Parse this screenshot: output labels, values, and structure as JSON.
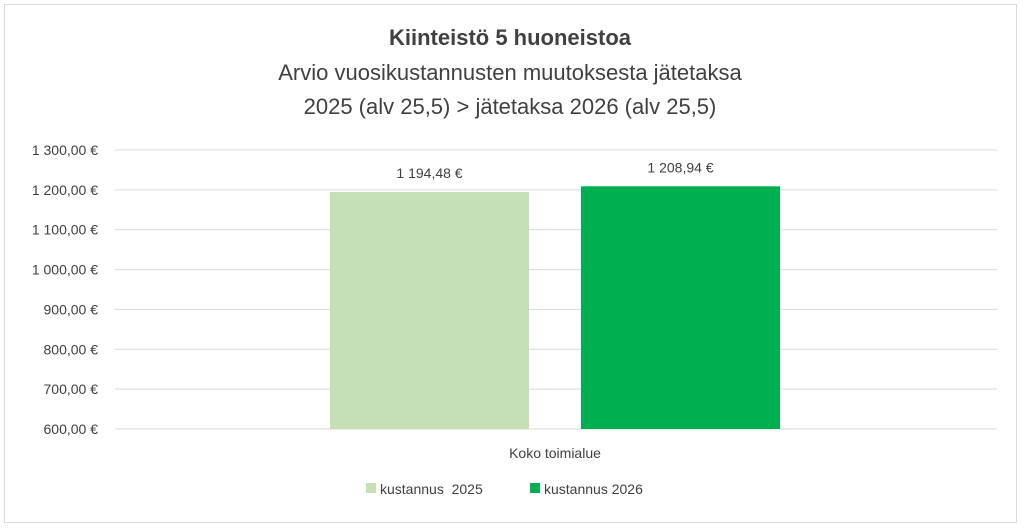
{
  "chart_data": {
    "type": "bar",
    "title": "Kiinteistö 5 huoneistoa",
    "subtitle_lines": [
      "Arvio vuosikustannusten muutoksesta jätetaksa",
      "2025 (alv 25,5) > jätetaksa 2026 (alv 25,5)"
    ],
    "categories": [
      "Koko toimialue"
    ],
    "series": [
      {
        "name": "kustannus  2025",
        "values": [
          1194.48
        ],
        "label": "1 194,48 €",
        "color": "#c5e0b4"
      },
      {
        "name": "kustannus 2026",
        "values": [
          1208.94
        ],
        "label": "1 208,94 €",
        "color": "#00b050"
      }
    ],
    "ylim": [
      600,
      1300
    ],
    "y_ticks": [
      600,
      700,
      800,
      900,
      1000,
      1100,
      1200,
      1300
    ],
    "y_tick_labels": [
      "600,00 €",
      "700,00 €",
      "800,00 €",
      "900,00 €",
      "1 000,00 €",
      "1 100,00 €",
      "1 200,00 €",
      "1 300,00 €"
    ],
    "grid": true,
    "legend_position": "bottom",
    "xlabel": "",
    "ylabel": ""
  }
}
